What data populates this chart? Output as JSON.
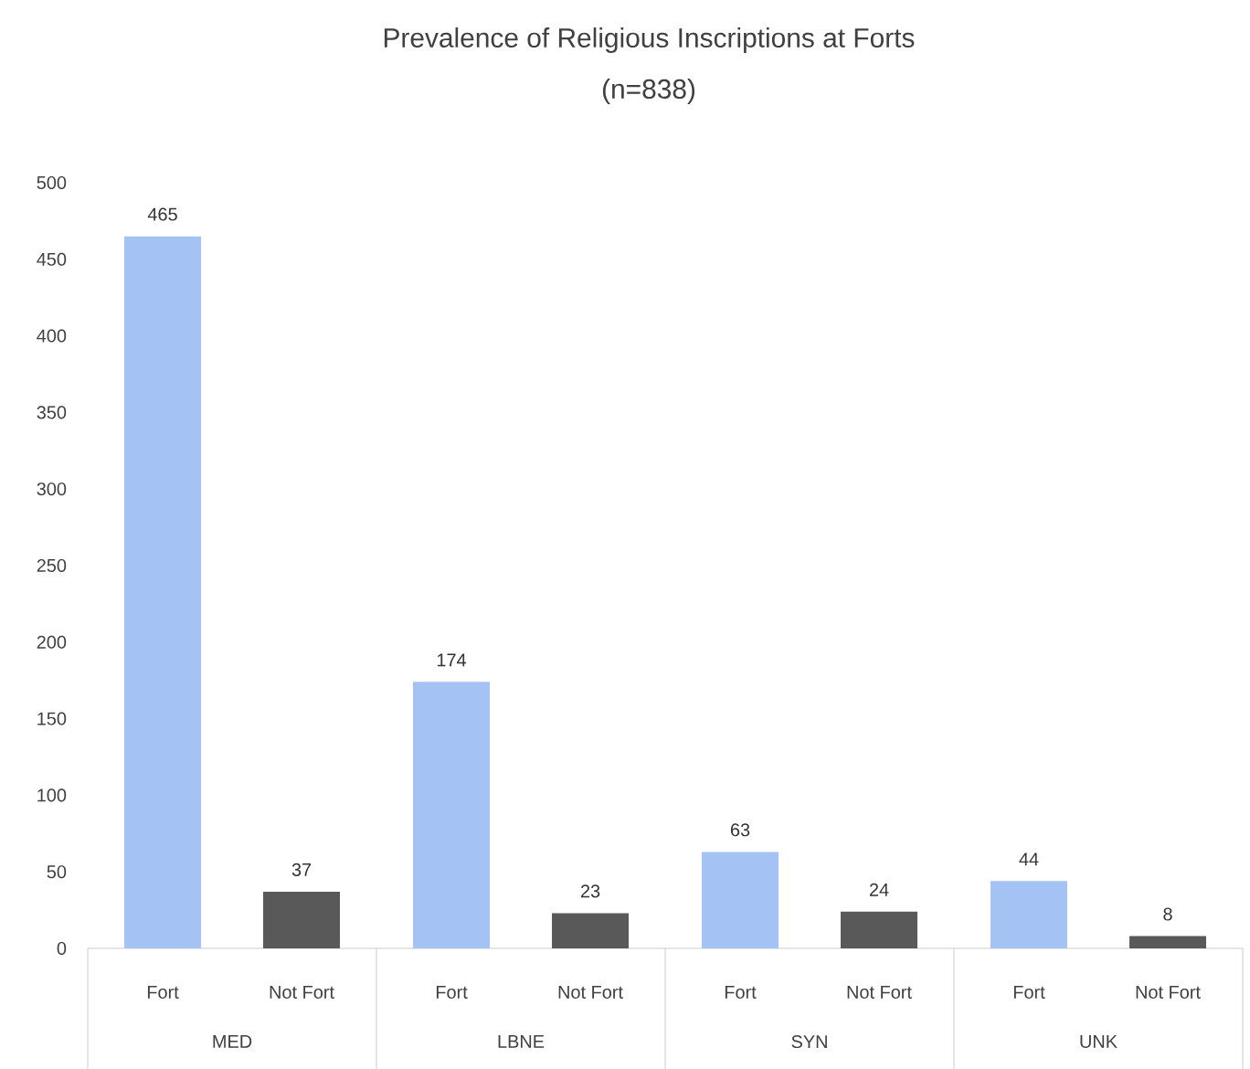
{
  "chart_data": {
    "type": "bar",
    "title": "Prevalence of Religious Inscriptions at Forts",
    "subtitle": "(n=838)",
    "categories": [
      "MED",
      "LBNE",
      "SYN",
      "UNK"
    ],
    "series": [
      {
        "name": "Fort",
        "color": "#a4c2f4",
        "values": [
          465,
          174,
          63,
          44
        ]
      },
      {
        "name": "Not Fort",
        "color": "#595959",
        "values": [
          37,
          23,
          24,
          8
        ]
      }
    ],
    "ylim": [
      0,
      500
    ],
    "yticks": [
      0,
      50,
      100,
      150,
      200,
      250,
      300,
      350,
      400,
      450,
      500
    ],
    "data_labels": true
  }
}
